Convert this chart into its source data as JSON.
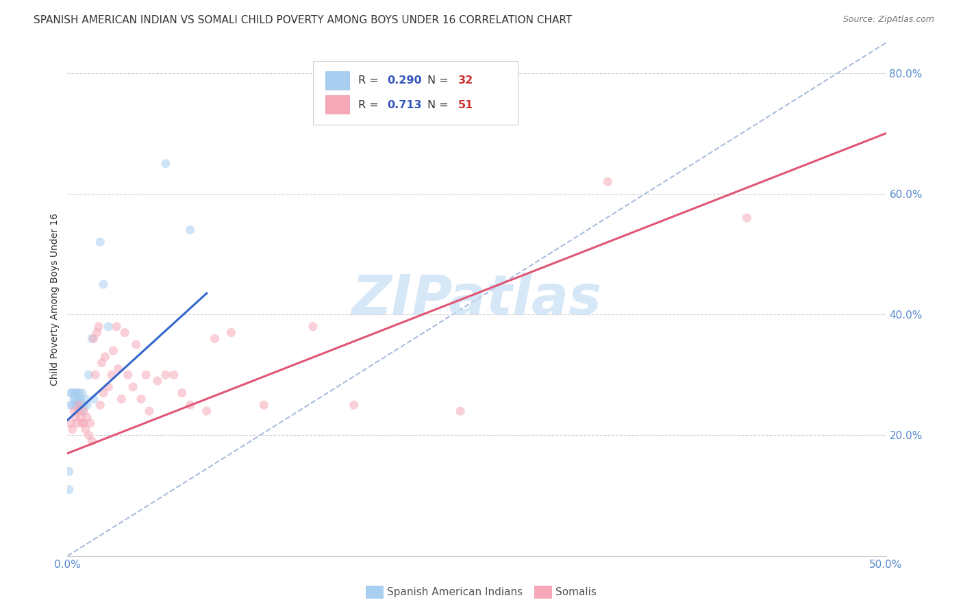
{
  "title": "SPANISH AMERICAN INDIAN VS SOMALI CHILD POVERTY AMONG BOYS UNDER 16 CORRELATION CHART",
  "source": "Source: ZipAtlas.com",
  "ylabel": "Child Poverty Among Boys Under 16",
  "xlim": [
    0.0,
    0.5
  ],
  "ylim": [
    0.0,
    0.85
  ],
  "xticks": [
    0.0,
    0.1,
    0.2,
    0.3,
    0.4,
    0.5
  ],
  "yticks": [
    0.0,
    0.2,
    0.4,
    0.6,
    0.8
  ],
  "background_color": "#ffffff",
  "grid_color": "#cccccc",
  "watermark_text": "ZIPatlas",
  "watermark_color": "#c5ddf5",
  "blue_color": "#a8cef0",
  "blue_line_color": "#3366cc",
  "pink_color": "#f5a8b8",
  "pink_line_color": "#e05575",
  "scatter_alpha": 0.55,
  "scatter_size": 90,
  "blue_scatter_x": [
    0.001,
    0.001,
    0.002,
    0.002,
    0.003,
    0.003,
    0.004,
    0.004,
    0.005,
    0.005,
    0.005,
    0.006,
    0.006,
    0.006,
    0.007,
    0.007,
    0.007,
    0.008,
    0.008,
    0.009,
    0.009,
    0.01,
    0.011,
    0.012,
    0.013,
    0.015,
    0.016,
    0.02,
    0.022,
    0.025,
    0.06,
    0.075
  ],
  "blue_scatter_y": [
    0.14,
    0.11,
    0.25,
    0.27,
    0.25,
    0.27,
    0.26,
    0.27,
    0.26,
    0.27,
    0.25,
    0.26,
    0.25,
    0.27,
    0.25,
    0.26,
    0.27,
    0.25,
    0.26,
    0.24,
    0.27,
    0.25,
    0.26,
    0.25,
    0.3,
    0.36,
    0.26,
    0.52,
    0.45,
    0.38,
    0.65,
    0.54
  ],
  "pink_scatter_x": [
    0.002,
    0.003,
    0.004,
    0.005,
    0.006,
    0.007,
    0.007,
    0.008,
    0.009,
    0.01,
    0.01,
    0.011,
    0.012,
    0.013,
    0.014,
    0.015,
    0.016,
    0.017,
    0.018,
    0.019,
    0.02,
    0.021,
    0.022,
    0.023,
    0.025,
    0.027,
    0.028,
    0.03,
    0.031,
    0.033,
    0.035,
    0.037,
    0.04,
    0.042,
    0.045,
    0.048,
    0.05,
    0.055,
    0.06,
    0.065,
    0.07,
    0.075,
    0.085,
    0.09,
    0.1,
    0.12,
    0.15,
    0.175,
    0.24,
    0.33,
    0.415
  ],
  "pink_scatter_y": [
    0.22,
    0.21,
    0.24,
    0.23,
    0.22,
    0.25,
    0.24,
    0.23,
    0.22,
    0.24,
    0.22,
    0.21,
    0.23,
    0.2,
    0.22,
    0.19,
    0.36,
    0.3,
    0.37,
    0.38,
    0.25,
    0.32,
    0.27,
    0.33,
    0.28,
    0.3,
    0.34,
    0.38,
    0.31,
    0.26,
    0.37,
    0.3,
    0.28,
    0.35,
    0.26,
    0.3,
    0.24,
    0.29,
    0.3,
    0.3,
    0.27,
    0.25,
    0.24,
    0.36,
    0.37,
    0.25,
    0.38,
    0.25,
    0.24,
    0.62,
    0.56
  ],
  "blue_line_x": [
    0.0,
    0.085
  ],
  "blue_line_y": [
    0.225,
    0.435
  ],
  "pink_line_x": [
    0.0,
    0.5
  ],
  "pink_line_y": [
    0.17,
    0.7
  ],
  "diag_line_x": [
    0.0,
    0.5
  ],
  "diag_line_y": [
    0.0,
    0.85
  ],
  "title_fontsize": 11,
  "axis_label_fontsize": 10,
  "tick_label_color": "#5588cc",
  "legend_r1_val": "0.290",
  "legend_n1_val": "32",
  "legend_r2_val": "0.713",
  "legend_n2_val": "51",
  "legend_label1": "Spanish American Indians",
  "legend_label2": "Somalis",
  "legend_num_color": "#3355bb",
  "legend_n_color": "#cc3333"
}
